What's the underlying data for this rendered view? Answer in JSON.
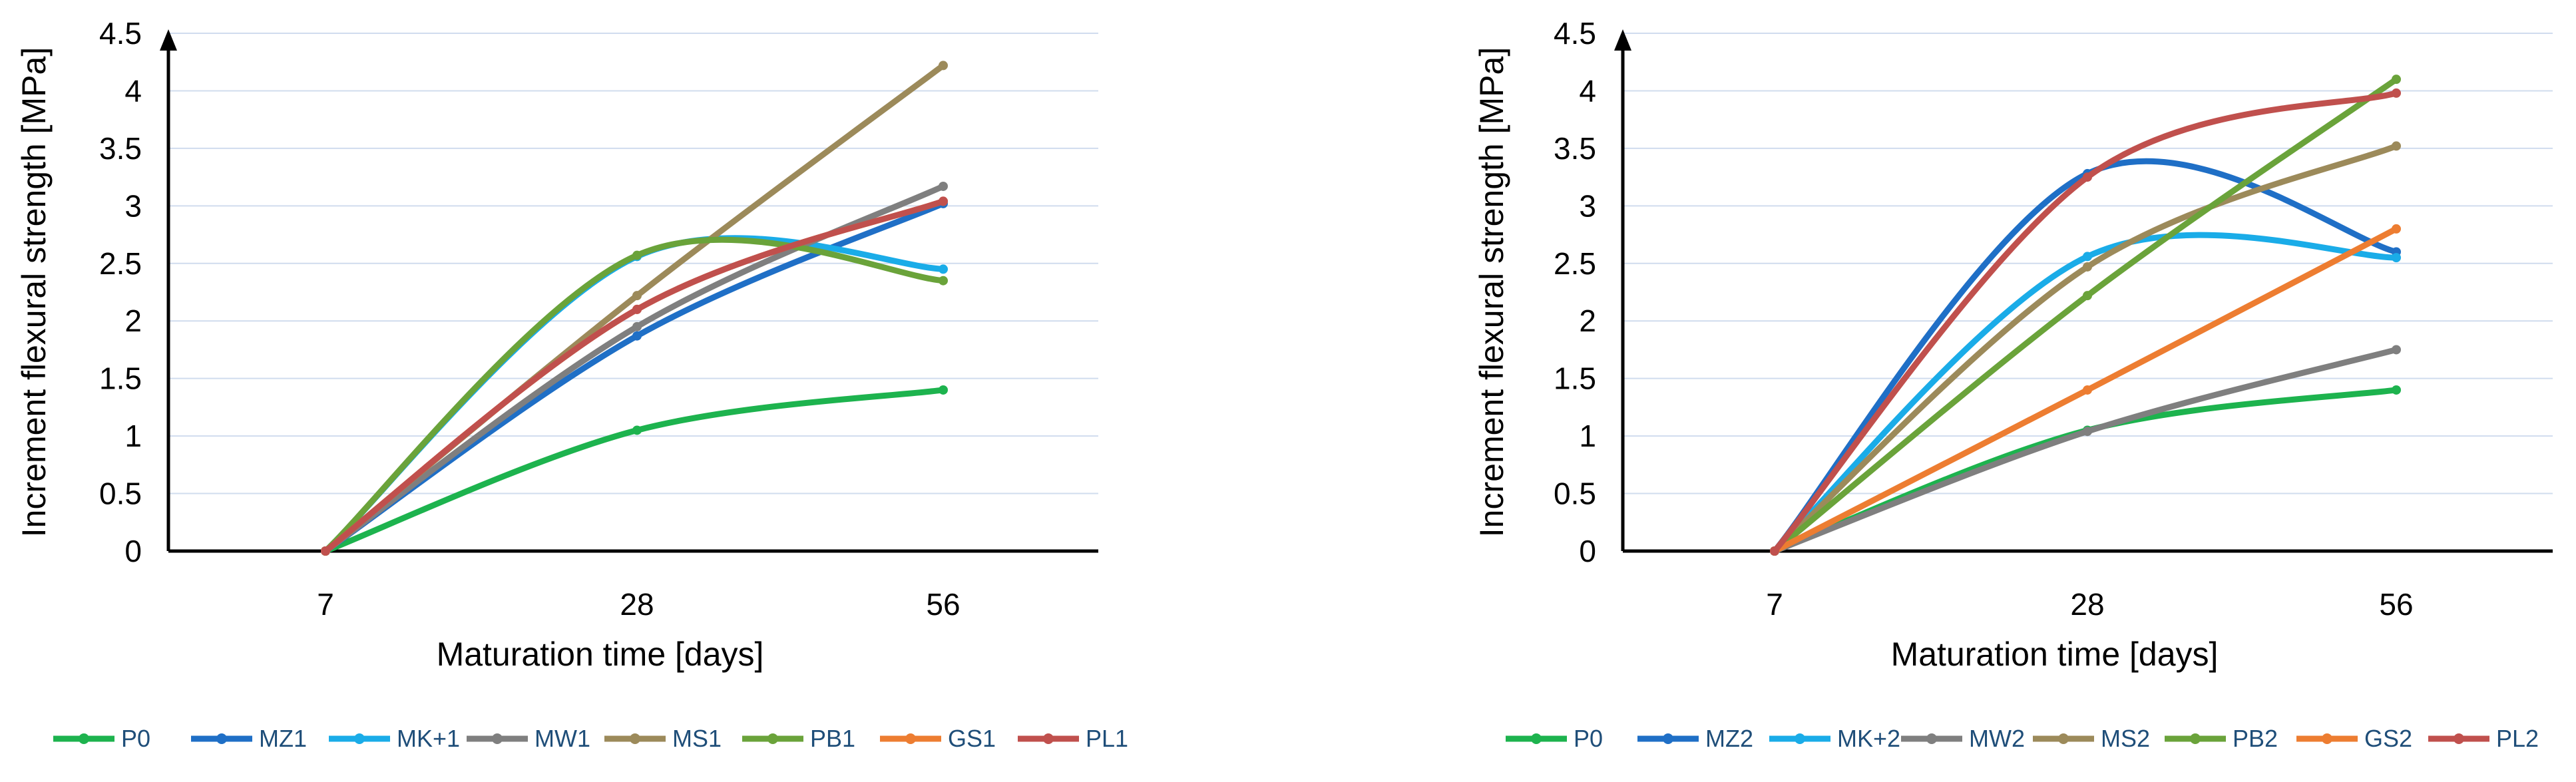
{
  "chart_data": [
    {
      "type": "line",
      "title": "",
      "xlabel": "Maturation time [days]",
      "ylabel": "Increment flexural strength [MPa]",
      "categories": [
        "7",
        "28",
        "56"
      ],
      "ylim": [
        0,
        4.5
      ],
      "yticks": [
        0,
        0.5,
        1,
        1.5,
        2,
        2.5,
        3,
        3.5,
        4,
        4.5
      ],
      "ytick_labels": [
        "0",
        "0.5",
        "1",
        "1.5",
        "2",
        "2.5",
        "3",
        "3.5",
        "4",
        "4.5"
      ],
      "grid": true,
      "smooth": true,
      "legend_position": "bottom",
      "series": [
        {
          "name": "P0",
          "color": "#1db34e",
          "values": [
            0,
            1.05,
            1.4
          ]
        },
        {
          "name": "MZ1",
          "color": "#1f6fc6",
          "values": [
            0,
            1.87,
            3.02
          ]
        },
        {
          "name": "MK+1",
          "color": "#1aace8",
          "values": [
            0,
            2.56,
            2.45
          ]
        },
        {
          "name": "MW1",
          "color": "#7f7f7f",
          "values": [
            0,
            1.95,
            3.17
          ]
        },
        {
          "name": "MS1",
          "color": "#9c8a5a",
          "values": [
            0,
            2.22,
            4.22
          ]
        },
        {
          "name": "PB1",
          "color": "#6aa33a",
          "values": [
            0,
            2.57,
            2.35
          ]
        },
        {
          "name": "GS1",
          "color": "#ed7d31",
          "values": [
            0,
            2.1,
            3.04
          ]
        },
        {
          "name": "PL1",
          "color": "#c0504d",
          "values": [
            0,
            2.1,
            3.04
          ]
        }
      ]
    },
    {
      "type": "line",
      "title": "",
      "xlabel": "Maturation time [days]",
      "ylabel": "Increment flexural strength [MPa]",
      "categories": [
        "7",
        "28",
        "56"
      ],
      "ylim": [
        0,
        4.5
      ],
      "yticks": [
        0,
        0.5,
        1,
        1.5,
        2,
        2.5,
        3,
        3.5,
        4,
        4.5
      ],
      "ytick_labels": [
        "0",
        "0.5",
        "1",
        "1.5",
        "2",
        "2.5",
        "3",
        "3.5",
        "4",
        "4.5"
      ],
      "grid": true,
      "smooth": true,
      "legend_position": "bottom",
      "series": [
        {
          "name": "P0",
          "color": "#1db34e",
          "values": [
            0,
            1.05,
            1.4
          ]
        },
        {
          "name": "MZ2",
          "color": "#1f6fc6",
          "values": [
            0,
            3.28,
            2.6
          ]
        },
        {
          "name": "MK+2",
          "color": "#1aace8",
          "values": [
            0,
            2.56,
            2.55
          ]
        },
        {
          "name": "MW2",
          "color": "#7f7f7f",
          "values": [
            0,
            1.04,
            1.75
          ]
        },
        {
          "name": "MS2",
          "color": "#9c8a5a",
          "values": [
            0,
            2.47,
            3.52
          ]
        },
        {
          "name": "PB2",
          "color": "#6aa33a",
          "values": [
            0,
            2.22,
            4.1
          ]
        },
        {
          "name": "GS2",
          "color": "#ed7d31",
          "values": [
            0,
            1.4,
            2.8
          ]
        },
        {
          "name": "PL2",
          "color": "#c0504d",
          "values": [
            0,
            3.25,
            3.98
          ]
        }
      ]
    }
  ]
}
